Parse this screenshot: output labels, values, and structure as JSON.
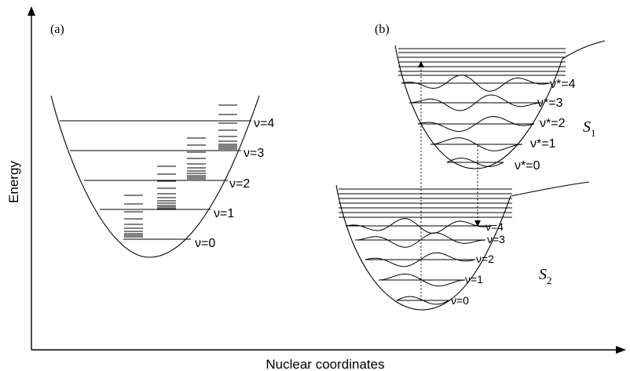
{
  "axes": {
    "x_label": "Nuclear coordinates",
    "y_label": "Energy"
  },
  "panel_a": {
    "tag": "(a)",
    "levels": [
      "ν=0",
      "ν=1",
      "ν=2",
      "ν=3",
      "ν=4"
    ]
  },
  "panel_b": {
    "tag": "(b)",
    "upper_state": {
      "letter": "S",
      "subscript": "1",
      "levels": [
        "ν*=0",
        "ν*=1",
        "ν*=2",
        "ν*=3",
        "ν*=4"
      ]
    },
    "lower_state": {
      "letter": "S",
      "subscript": "2",
      "levels": [
        "ν=0",
        "ν=1",
        "ν=2",
        "ν=3",
        "ν=4"
      ]
    }
  }
}
